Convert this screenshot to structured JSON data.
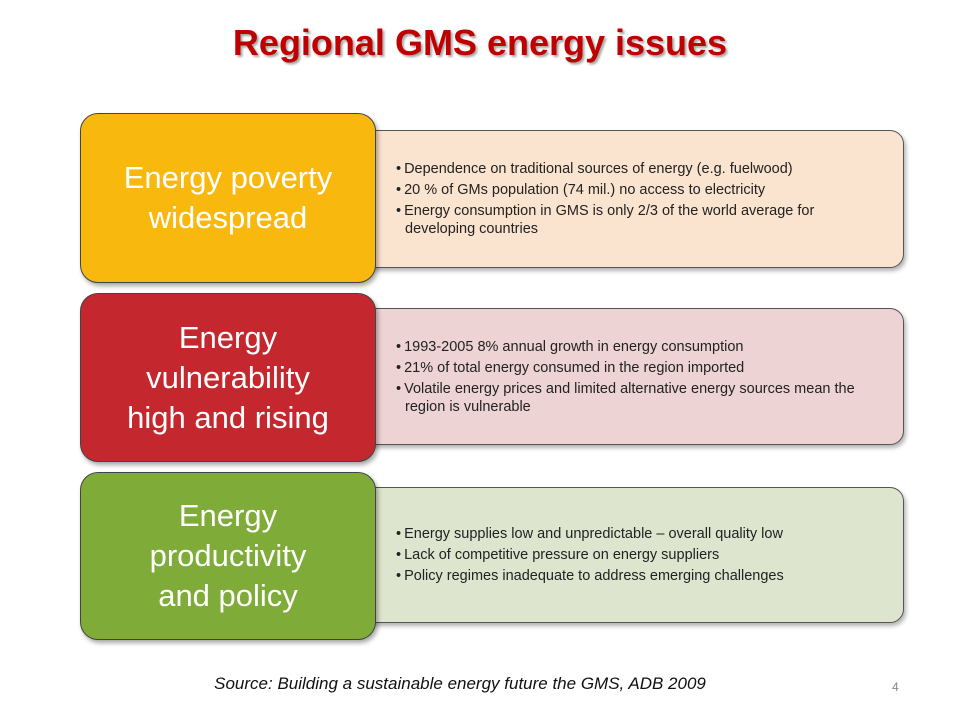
{
  "header": {
    "title": "Regional GMS energy issues"
  },
  "items": [
    {
      "heading": [
        "Energy poverty",
        "widespread"
      ],
      "bullets": [
        "Dependence on traditional sources of energy (e.g. fuelwood)",
        "20 % of GMs population (74 mil.) no access to electricity",
        "Energy consumption in GMS is only 2/3 of the world  average for developing countries"
      ]
    },
    {
      "heading": [
        "Energy",
        "vulnerability",
        "high and rising"
      ],
      "bullets": [
        "1993-2005 8% annual growth in energy consumption",
        "21% of total energy consumed in the region imported",
        "Volatile energy prices and limited alternative energy sources mean the region is vulnerable"
      ]
    },
    {
      "heading": [
        "Energy",
        "productivity",
        "and policy"
      ],
      "bullets": [
        "Energy supplies low and unpredictable – overall quality low",
        "Lack of competitive pressure on energy suppliers",
        "Policy regimes inadequate to address emerging challenges"
      ]
    }
  ],
  "footer": {
    "source": "Source: Building a sustainable energy future the GMS, ADB 2009",
    "page_number": "4"
  }
}
